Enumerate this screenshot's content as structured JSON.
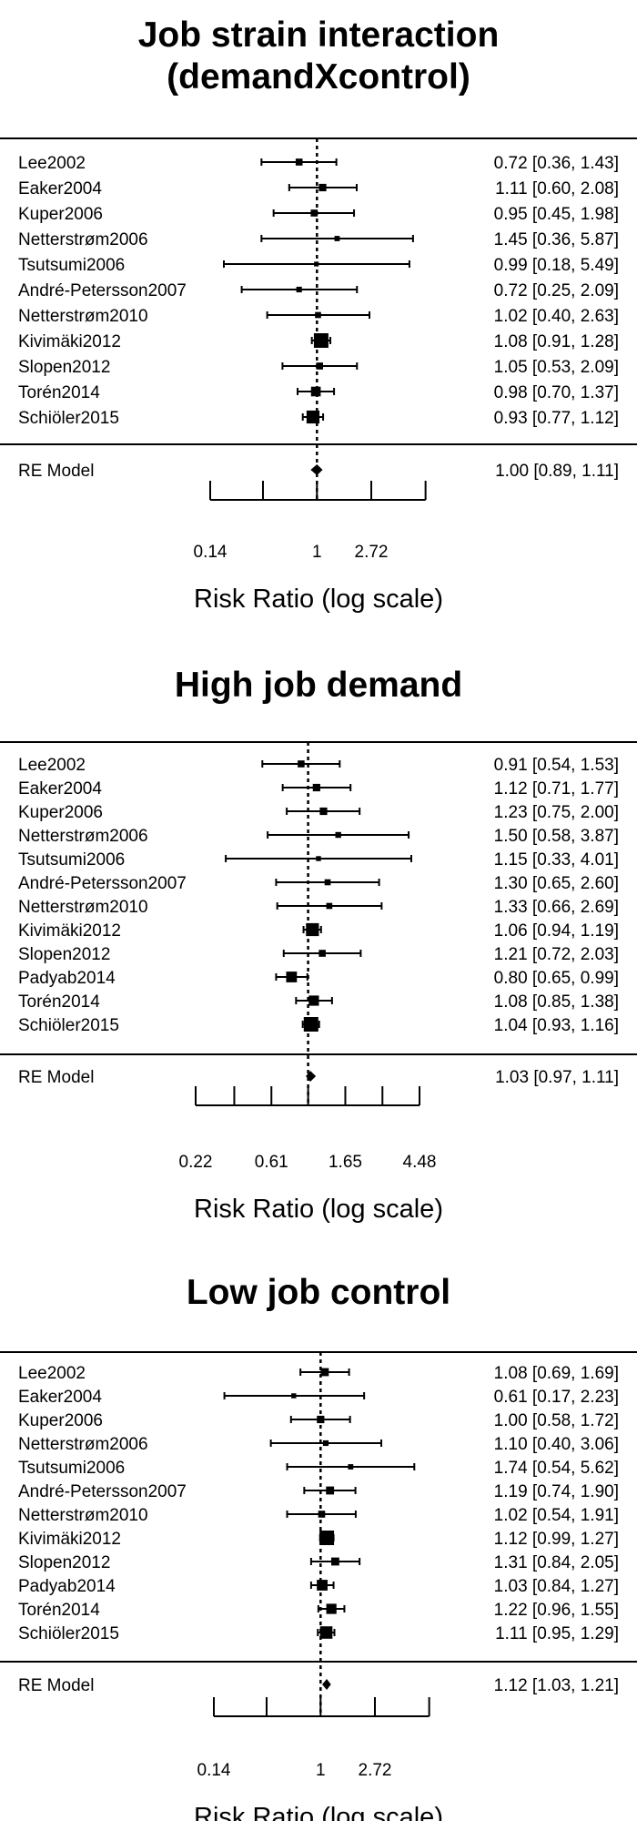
{
  "chart_data": [
    {
      "type": "forest",
      "title": "Job strain interaction (demandXcontrol)",
      "xlabel": "Risk Ratio (log scale)",
      "x_scale": "log",
      "xlim": [
        0.14,
        4.5
      ],
      "ticks": [
        {
          "value": 0.14,
          "label": "0.14"
        },
        {
          "value": 0.37,
          "label": ""
        },
        {
          "value": 1,
          "label": "1"
        },
        {
          "value": 2.72,
          "label": "2.72"
        },
        {
          "value": 7.39,
          "label": ""
        }
      ],
      "studies": [
        {
          "label": "Lee2002",
          "rr": 0.72,
          "lo": 0.36,
          "hi": 1.43,
          "text": "0.72 [0.36, 1.43]",
          "weight": 0.3
        },
        {
          "label": "Eaker2004",
          "rr": 1.11,
          "lo": 0.6,
          "hi": 2.08,
          "text": "1.11 [0.60, 2.08]",
          "weight": 0.35
        },
        {
          "label": "Kuper2006",
          "rr": 0.95,
          "lo": 0.45,
          "hi": 1.98,
          "text": "0.95 [0.45, 1.98]",
          "weight": 0.3
        },
        {
          "label": "Netterstrøm2006",
          "rr": 1.45,
          "lo": 0.36,
          "hi": 5.87,
          "text": "1.45 [0.36, 5.87]",
          "weight": 0.15
        },
        {
          "label": "Tsutsumi2006",
          "rr": 0.99,
          "lo": 0.18,
          "hi": 5.49,
          "text": "0.99 [0.18, 5.49]",
          "weight": 0.1
        },
        {
          "label": "André-Petersson2007",
          "rr": 0.72,
          "lo": 0.25,
          "hi": 2.09,
          "text": "0.72 [0.25, 2.09]",
          "weight": 0.18
        },
        {
          "label": "Netterstrøm2010",
          "rr": 1.02,
          "lo": 0.4,
          "hi": 2.63,
          "text": "1.02 [0.40, 2.63]",
          "weight": 0.22
        },
        {
          "label": "Kivimäki2012",
          "rr": 1.08,
          "lo": 0.91,
          "hi": 1.28,
          "text": "1.08 [0.91, 1.28]",
          "weight": 1.0
        },
        {
          "label": "Slopen2012",
          "rr": 1.05,
          "lo": 0.53,
          "hi": 2.09,
          "text": "1.05 [0.53, 2.09]",
          "weight": 0.3
        },
        {
          "label": "Torén2014",
          "rr": 0.98,
          "lo": 0.7,
          "hi": 1.37,
          "text": "0.98 [0.70, 1.37]",
          "weight": 0.55
        },
        {
          "label": "Schiöler2015",
          "rr": 0.93,
          "lo": 0.77,
          "hi": 1.12,
          "text": "0.93 [0.77, 1.12]",
          "weight": 0.85
        }
      ],
      "summary": {
        "label": "RE Model",
        "rr": 1.0,
        "lo": 0.89,
        "hi": 1.11,
        "text": "1.00 [0.89, 1.11]"
      }
    },
    {
      "type": "forest",
      "title": "High job demand",
      "xlabel": "Risk Ratio (log scale)",
      "x_scale": "log",
      "xlim": [
        0.22,
        4.48
      ],
      "ticks": [
        {
          "value": 0.22,
          "label": "0.22"
        },
        {
          "value": 0.37,
          "label": ""
        },
        {
          "value": 0.61,
          "label": "0.61"
        },
        {
          "value": 1,
          "label": ""
        },
        {
          "value": 1.65,
          "label": "1.65"
        },
        {
          "value": 2.72,
          "label": ""
        },
        {
          "value": 4.48,
          "label": "4.48"
        }
      ],
      "studies": [
        {
          "label": "Lee2002",
          "rr": 0.91,
          "lo": 0.54,
          "hi": 1.53,
          "text": "0.91 [0.54, 1.53]",
          "weight": 0.3
        },
        {
          "label": "Eaker2004",
          "rr": 1.12,
          "lo": 0.71,
          "hi": 1.77,
          "text": "1.12 [0.71, 1.77]",
          "weight": 0.35
        },
        {
          "label": "Kuper2006",
          "rr": 1.23,
          "lo": 0.75,
          "hi": 2.0,
          "text": "1.23 [0.75, 2.00]",
          "weight": 0.35
        },
        {
          "label": "Netterstrøm2006",
          "rr": 1.5,
          "lo": 0.58,
          "hi": 3.87,
          "text": "1.50 [0.58, 3.87]",
          "weight": 0.2
        },
        {
          "label": "Tsutsumi2006",
          "rr": 1.15,
          "lo": 0.33,
          "hi": 4.01,
          "text": "1.15 [0.33, 4.01]",
          "weight": 0.12
        },
        {
          "label": "André-Petersson2007",
          "rr": 1.3,
          "lo": 0.65,
          "hi": 2.6,
          "text": "1.30 [0.65, 2.60]",
          "weight": 0.22
        },
        {
          "label": "Netterstrøm2010",
          "rr": 1.33,
          "lo": 0.66,
          "hi": 2.69,
          "text": "1.33 [0.66, 2.69]",
          "weight": 0.22
        },
        {
          "label": "Kivimäki2012",
          "rr": 1.06,
          "lo": 0.94,
          "hi": 1.19,
          "text": "1.06 [0.94, 1.19]",
          "weight": 0.85
        },
        {
          "label": "Slopen2012",
          "rr": 1.21,
          "lo": 0.72,
          "hi": 2.03,
          "text": "1.21 [0.72, 2.03]",
          "weight": 0.3
        },
        {
          "label": "Padyab2014",
          "rr": 0.8,
          "lo": 0.65,
          "hi": 0.99,
          "text": "0.80 [0.65, 0.99]",
          "weight": 0.65
        },
        {
          "label": "Torén2014",
          "rr": 1.08,
          "lo": 0.85,
          "hi": 1.38,
          "text": "1.08 [0.85, 1.38]",
          "weight": 0.6
        },
        {
          "label": "Schiöler2015",
          "rr": 1.04,
          "lo": 0.93,
          "hi": 1.16,
          "text": "1.04 [0.93, 1.16]",
          "weight": 1.0
        }
      ],
      "summary": {
        "label": "RE Model",
        "rr": 1.03,
        "lo": 0.97,
        "hi": 1.11,
        "text": "1.03 [0.97, 1.11]"
      }
    },
    {
      "type": "forest",
      "title": "Low job control",
      "xlabel": "Risk Ratio (log scale)",
      "x_scale": "log",
      "xlim": [
        0.14,
        4.5
      ],
      "ticks": [
        {
          "value": 0.14,
          "label": "0.14"
        },
        {
          "value": 0.37,
          "label": ""
        },
        {
          "value": 1,
          "label": "1"
        },
        {
          "value": 2.72,
          "label": "2.72"
        },
        {
          "value": 7.39,
          "label": ""
        }
      ],
      "studies": [
        {
          "label": "Lee2002",
          "rr": 1.08,
          "lo": 0.69,
          "hi": 1.69,
          "text": "1.08 [0.69, 1.69]",
          "weight": 0.4
        },
        {
          "label": "Eaker2004",
          "rr": 0.61,
          "lo": 0.17,
          "hi": 2.23,
          "text": "0.61 [0.17, 2.23]",
          "weight": 0.12
        },
        {
          "label": "Kuper2006",
          "rr": 1.0,
          "lo": 0.58,
          "hi": 1.72,
          "text": "1.00 [0.58, 1.72]",
          "weight": 0.35
        },
        {
          "label": "Netterstrøm2006",
          "rr": 1.1,
          "lo": 0.4,
          "hi": 3.06,
          "text": "1.10 [0.40, 3.06]",
          "weight": 0.18
        },
        {
          "label": "Tsutsumi2006",
          "rr": 1.74,
          "lo": 0.54,
          "hi": 5.62,
          "text": "1.74 [0.54, 5.62]",
          "weight": 0.15
        },
        {
          "label": "André-Petersson2007",
          "rr": 1.19,
          "lo": 0.74,
          "hi": 1.9,
          "text": "1.19 [0.74, 1.90]",
          "weight": 0.4
        },
        {
          "label": "Netterstrøm2010",
          "rr": 1.02,
          "lo": 0.54,
          "hi": 1.91,
          "text": "1.02 [0.54, 1.91]",
          "weight": 0.3
        },
        {
          "label": "Kivimäki2012",
          "rr": 1.12,
          "lo": 0.99,
          "hi": 1.27,
          "text": "1.12 [0.99, 1.27]",
          "weight": 1.0
        },
        {
          "label": "Slopen2012",
          "rr": 1.31,
          "lo": 0.84,
          "hi": 2.05,
          "text": "1.31 [0.84, 2.05]",
          "weight": 0.4
        },
        {
          "label": "Padyab2014",
          "rr": 1.03,
          "lo": 0.84,
          "hi": 1.27,
          "text": "1.03 [0.84, 1.27]",
          "weight": 0.65
        },
        {
          "label": "Torén2014",
          "rr": 1.22,
          "lo": 0.96,
          "hi": 1.55,
          "text": "1.22 [0.96, 1.55]",
          "weight": 0.6
        },
        {
          "label": "Schiöler2015",
          "rr": 1.11,
          "lo": 0.95,
          "hi": 1.29,
          "text": "1.11 [0.95, 1.29]",
          "weight": 0.8
        }
      ],
      "summary": {
        "label": "RE Model",
        "rr": 1.12,
        "lo": 1.03,
        "hi": 1.21,
        "text": "1.12 [1.03, 1.21]"
      }
    }
  ]
}
